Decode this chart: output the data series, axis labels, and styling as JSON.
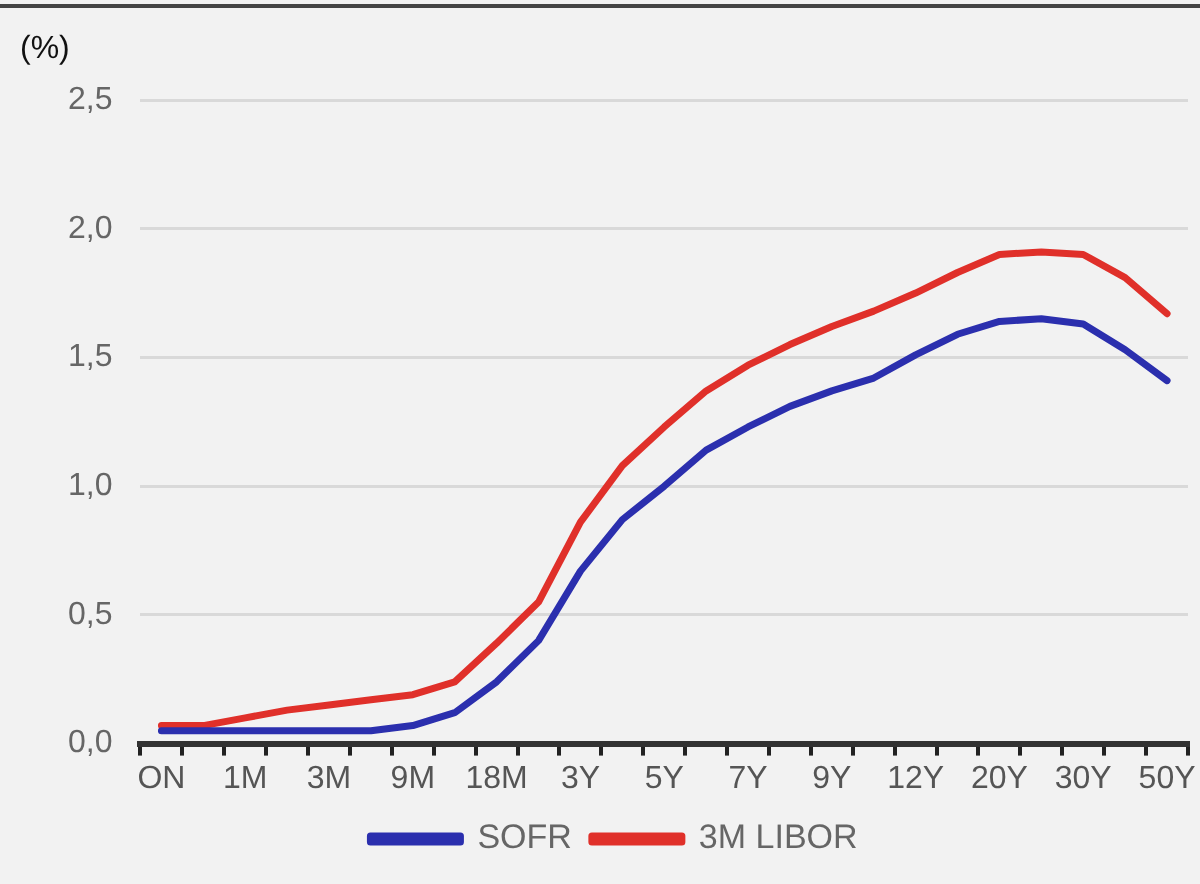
{
  "chart_data": {
    "type": "line",
    "ylabel": "(%)",
    "categories": [
      "ON",
      null,
      "1M",
      null,
      "3M",
      null,
      "9M",
      null,
      "18M",
      null,
      "3Y",
      null,
      "5Y",
      null,
      "7Y",
      null,
      "9Y",
      null,
      "12Y",
      null,
      "20Y",
      null,
      "30Y",
      null,
      "50Y"
    ],
    "series": [
      {
        "name": "SOFR",
        "color": "#2b2fae",
        "values": [
          0.05,
          0.05,
          0.05,
          0.05,
          0.05,
          0.05,
          0.07,
          0.12,
          0.24,
          0.4,
          0.67,
          0.87,
          1.0,
          1.14,
          1.23,
          1.31,
          1.37,
          1.42,
          1.51,
          1.59,
          1.64,
          1.65,
          1.63,
          1.53,
          1.41
        ]
      },
      {
        "name": "3M LIBOR",
        "color": "#e0302a",
        "values": [
          0.07,
          0.07,
          0.1,
          0.13,
          0.15,
          0.17,
          0.19,
          0.24,
          0.39,
          0.55,
          0.86,
          1.08,
          1.23,
          1.37,
          1.47,
          1.55,
          1.62,
          1.68,
          1.75,
          1.83,
          1.9,
          1.91,
          1.9,
          1.81,
          1.67
        ]
      }
    ],
    "ylim": [
      0,
      2.5
    ],
    "yticks": [
      {
        "value": 0,
        "label": "0,0"
      },
      {
        "value": 0.5,
        "label": "0,5"
      },
      {
        "value": 1,
        "label": "1,0"
      },
      {
        "value": 1.5,
        "label": "1,5"
      },
      {
        "value": 2,
        "label": "2,0"
      },
      {
        "value": 2.5,
        "label": "2,5"
      }
    ],
    "grid": "y",
    "legend": "bottom",
    "marker": "none",
    "line_style": "solid"
  }
}
